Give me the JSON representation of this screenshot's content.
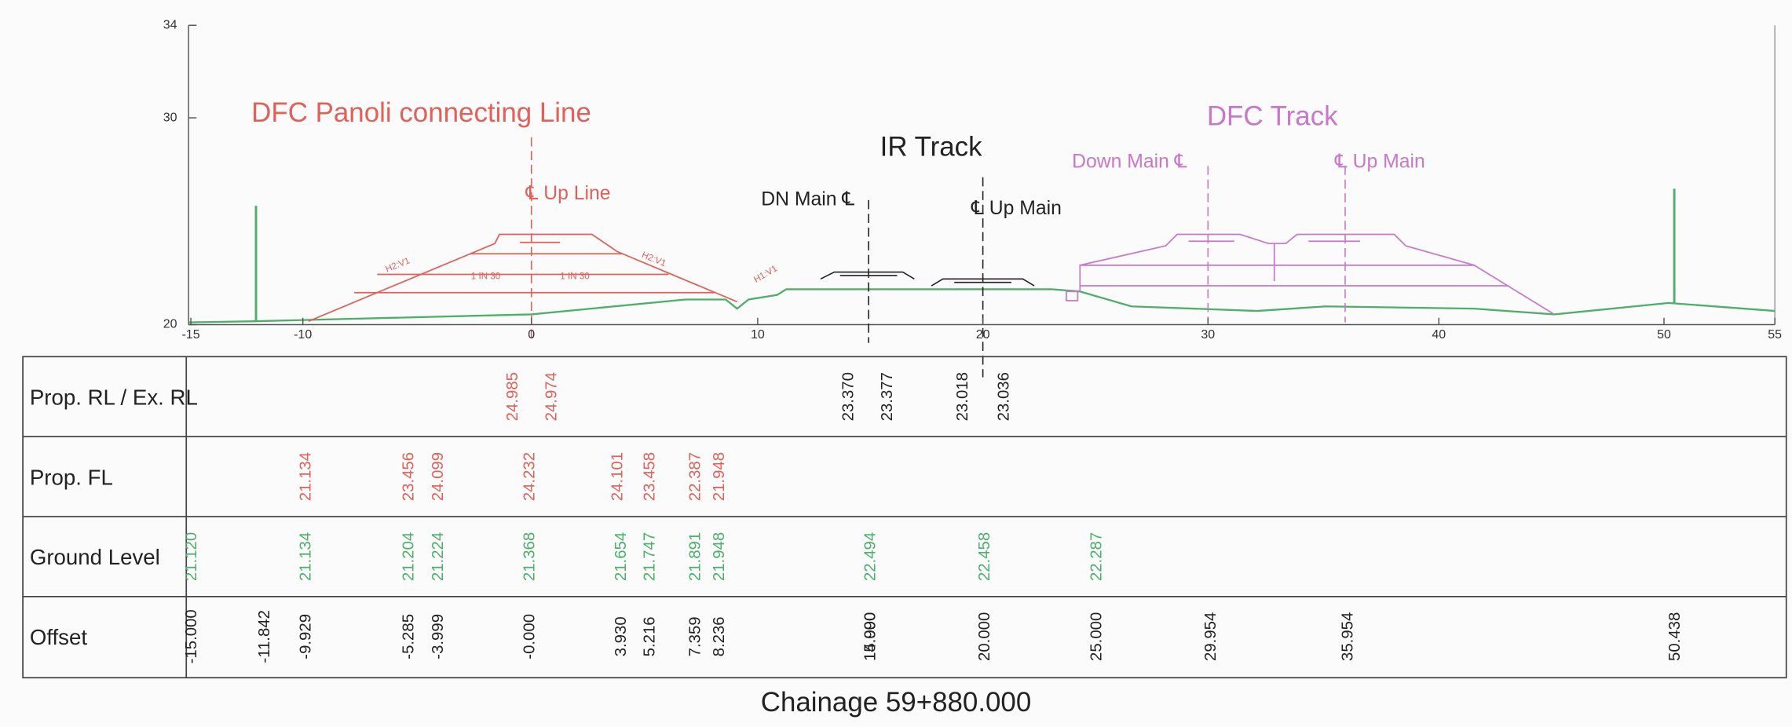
{
  "y_axis_labels": [
    "34",
    "30",
    "20"
  ],
  "x_axis_labels": [
    "-15",
    "-10",
    "0",
    "10",
    "20",
    "30",
    "40",
    "50",
    "55"
  ],
  "annotations": [
    "DFC Panoli connecting Line",
    "℄ Up Line",
    "DN Main ℄",
    "IR Track",
    "℄ Up Main",
    "DFC Track",
    "Down Main ℄",
    "℄ Up Main",
    "H2:V1",
    "1 IN 30",
    "1 IN 30",
    "H2:V1",
    "H1:V1"
  ],
  "table": {
    "rows": [
      {
        "label": "Prop. RL / Ex. RL",
        "values": [
          "24.985",
          "24.974",
          "23.370",
          "23.377",
          "23.018",
          "23.036"
        ]
      },
      {
        "label": "Prop. FL",
        "values": [
          "21.134",
          "23.456",
          "24.099",
          "24.232",
          "24.101",
          "23.458",
          "22.387",
          "21.948"
        ]
      },
      {
        "label": "Ground Level",
        "values": [
          "21.120",
          "21.134",
          "21.204",
          "21.224",
          "21.368",
          "21.654",
          "21.747",
          "21.891",
          "21.948",
          "22.494",
          "22.458",
          "22.287"
        ]
      },
      {
        "label": "Offset",
        "values": [
          "-15.000",
          "-11.842",
          "-9.929",
          "-5.285",
          "-3.999",
          "-0.000",
          "3.930",
          "5.216",
          "7.359",
          "8.236",
          "14.990",
          "15.000",
          "20.000",
          "25.000",
          "29.954",
          "35.954",
          "50.438"
        ]
      }
    ]
  },
  "footer": "Chainage 59+880.000"
}
